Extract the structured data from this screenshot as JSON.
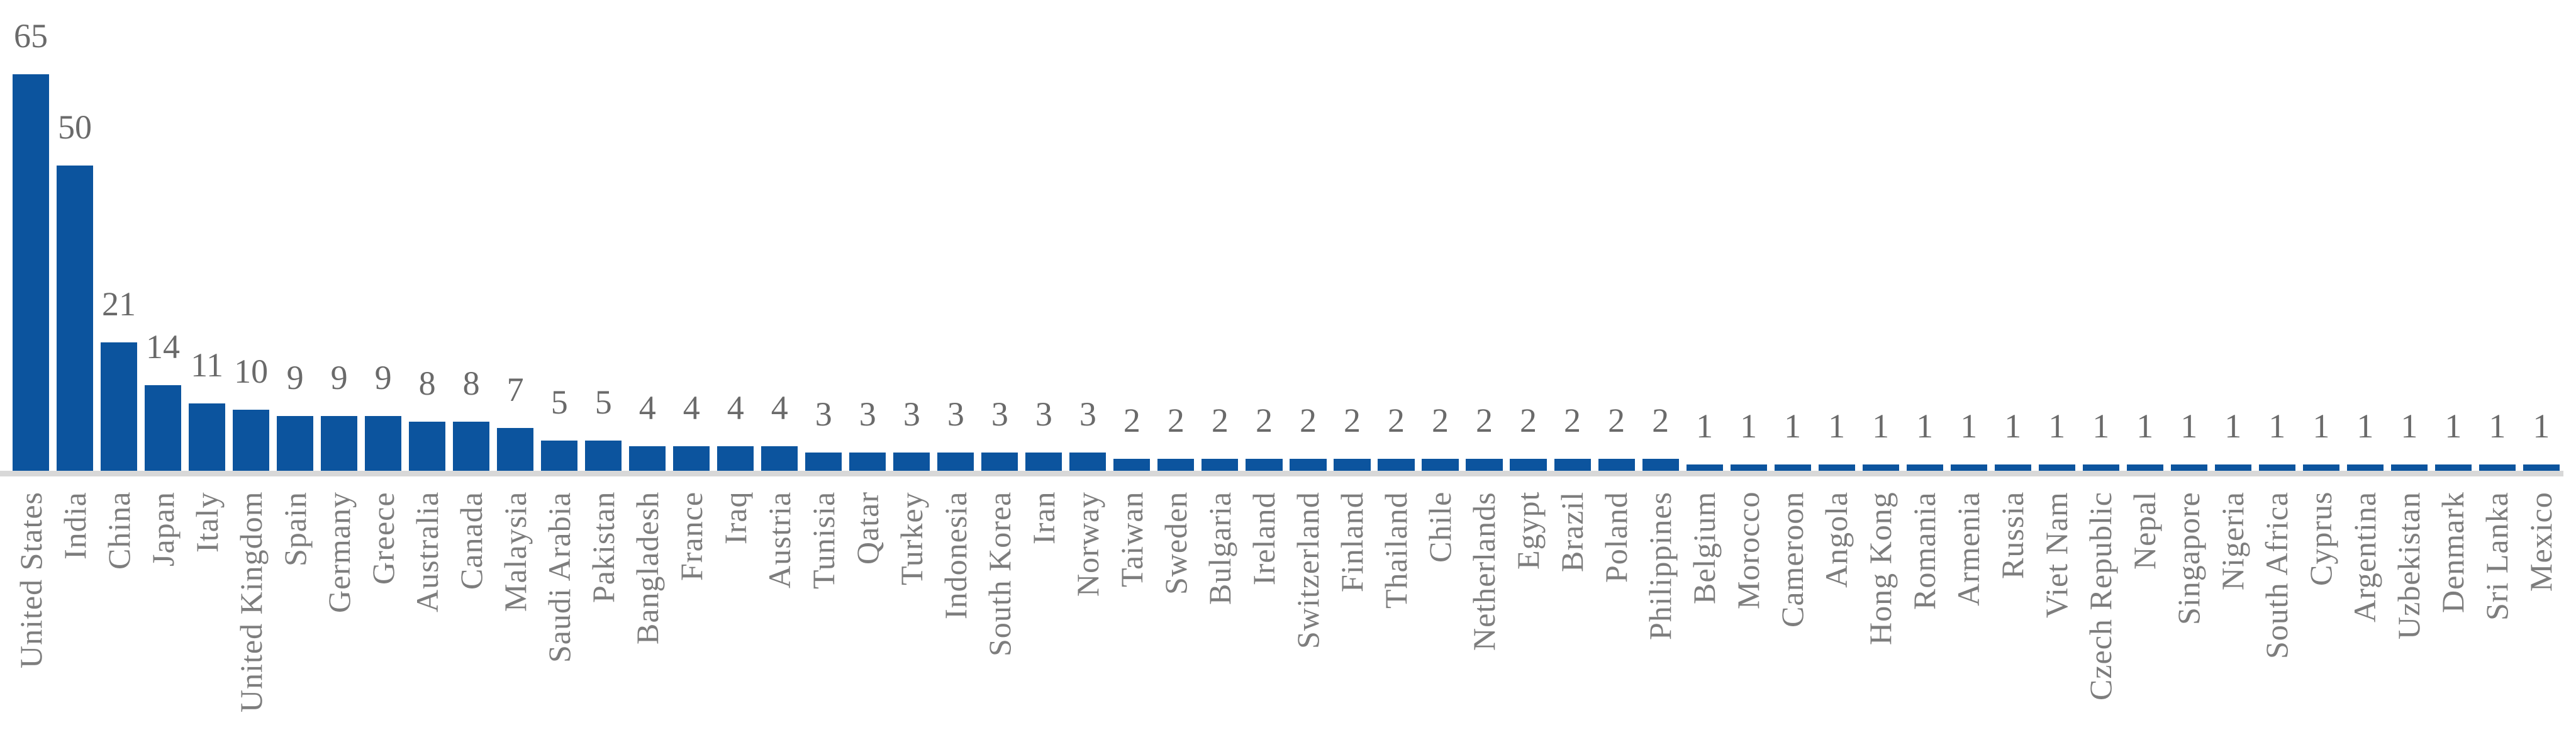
{
  "chart_data": {
    "type": "bar",
    "categories": [
      "United States",
      "India",
      "China",
      "Japan",
      "Italy",
      "United Kingdom",
      "Spain",
      "Germany",
      "Greece",
      "Australia",
      "Canada",
      "Malaysia",
      "Saudi Arabia",
      "Pakistan",
      "Bangladesh",
      "France",
      "Iraq",
      "Austria",
      "Tunisia",
      "Qatar",
      "Turkey",
      "Indonesia",
      "South Korea",
      "Iran",
      "Norway",
      "Taiwan",
      "Sweden",
      "Bulgaria",
      "Ireland",
      "Switzerland",
      "Finland",
      "Thailand",
      "Chile",
      "Netherlands",
      "Egypt",
      "Brazil",
      "Poland",
      "Philippines",
      "Belgium",
      "Morocco",
      "Cameroon",
      "Angola",
      "Hong Kong",
      "Romania",
      "Armenia",
      "Russia",
      "Viet Nam",
      "Czech Republic",
      "Nepal",
      "Singapore",
      "Nigeria",
      "South Africa",
      "Cyprus",
      "Argentina",
      "Uzbekistan",
      "Denmark",
      "Sri Lanka",
      "Mexico"
    ],
    "values": [
      65,
      50,
      21,
      14,
      11,
      10,
      9,
      9,
      9,
      8,
      8,
      7,
      5,
      5,
      4,
      4,
      4,
      4,
      3,
      3,
      3,
      3,
      3,
      3,
      3,
      2,
      2,
      2,
      2,
      2,
      2,
      2,
      2,
      2,
      2,
      2,
      2,
      2,
      1,
      1,
      1,
      1,
      1,
      1,
      1,
      1,
      1,
      1,
      1,
      1,
      1,
      1,
      1,
      1,
      1,
      1,
      1,
      1
    ],
    "title": "",
    "xlabel": "",
    "ylabel": "",
    "ylim": [
      0,
      65
    ],
    "grid": false,
    "legend": false,
    "data_labels": "outside-end",
    "bar_color": "#0c549e",
    "value_label_color": "#6a6a6a",
    "axis_label_color": "#7d7d7d",
    "axis_line_color": "#d8d8d8"
  }
}
